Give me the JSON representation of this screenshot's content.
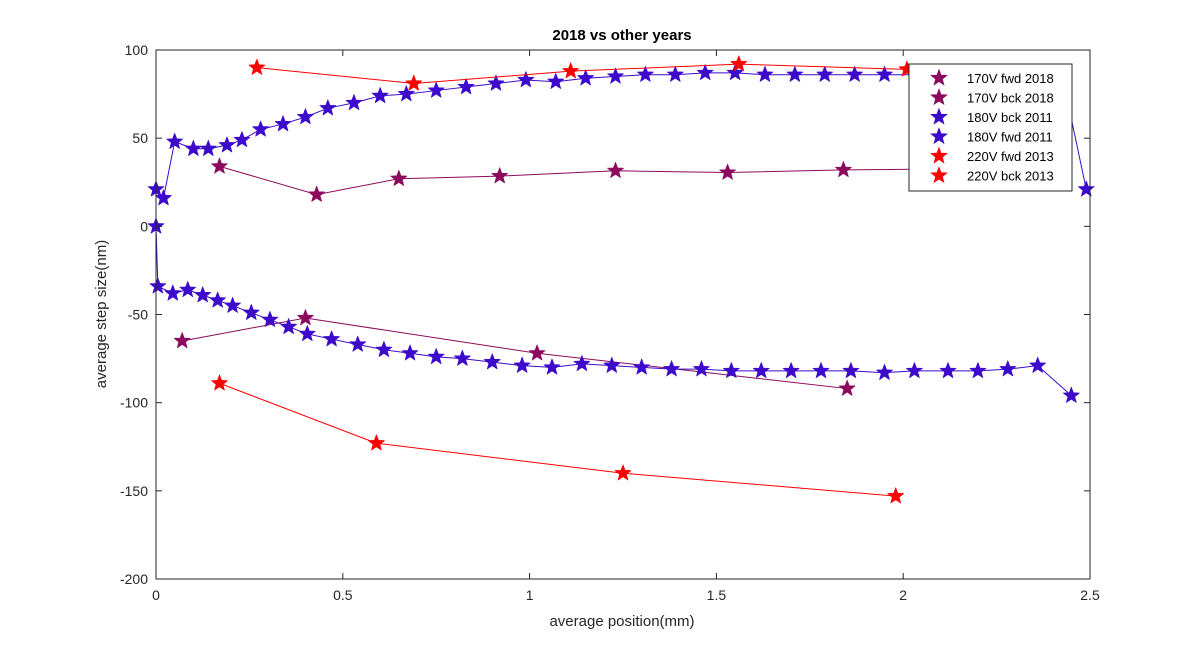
{
  "chart_data": {
    "type": "line",
    "title": "2018 vs other years",
    "xlabel": "average position(mm)",
    "ylabel": "average step size(nm)",
    "xlim": [
      0,
      2.5
    ],
    "ylim": [
      -200,
      100
    ],
    "xticks": [
      0,
      0.5,
      1,
      1.5,
      2,
      2.5
    ],
    "yticks": [
      -200,
      -150,
      -100,
      -50,
      0,
      50,
      100
    ],
    "xtick_labels": [
      "0",
      "0.5",
      "1",
      "1.5",
      "2",
      "2.5"
    ],
    "ytick_labels": [
      "-200",
      "-150",
      "-100",
      "-50",
      "0",
      "50",
      "100"
    ],
    "grid": false,
    "marker": "star",
    "legend_position": "top-right",
    "series": [
      {
        "name": "170V fwd 2018",
        "color": "#8b0a5e",
        "x": [
          0.17,
          0.43,
          0.65,
          0.92,
          1.23,
          1.53,
          1.84,
          2.1
        ],
        "y": [
          34,
          18,
          27,
          28.5,
          31.5,
          30.5,
          32,
          32.5
        ]
      },
      {
        "name": "170V bck 2018",
        "color": "#8b0a5e",
        "x": [
          0.07,
          0.4,
          1.02,
          1.85
        ],
        "y": [
          -65,
          -52,
          -72,
          -92
        ]
      },
      {
        "name": "180V bck 2011",
        "color": "#3d0acc",
        "x": [
          0.0,
          0.005,
          0.045,
          0.085,
          0.125,
          0.165,
          0.205,
          0.255,
          0.305,
          0.355,
          0.405,
          0.47,
          0.54,
          0.61,
          0.68,
          0.75,
          0.82,
          0.9,
          0.98,
          1.06,
          1.14,
          1.22,
          1.3,
          1.38,
          1.46,
          1.54,
          1.62,
          1.7,
          1.78,
          1.86,
          1.95,
          2.03,
          2.12,
          2.2,
          2.28,
          2.36,
          2.45
        ],
        "y": [
          0,
          -34,
          -38,
          -36,
          -39,
          -42,
          -45,
          -49,
          -53,
          -57,
          -61,
          -64,
          -67,
          -70,
          -72,
          -74,
          -75,
          -77,
          -79,
          -80,
          -78,
          -79,
          -80,
          -81,
          -81,
          -82,
          -82,
          -82,
          -82,
          -82,
          -83,
          -82,
          -82,
          -82,
          -81,
          -79,
          -96
        ]
      },
      {
        "name": "180V fwd 2011",
        "color": "#3d0acc",
        "x": [
          0.0,
          0.02,
          0.05,
          0.1,
          0.14,
          0.19,
          0.23,
          0.28,
          0.34,
          0.4,
          0.46,
          0.53,
          0.6,
          0.67,
          0.75,
          0.83,
          0.91,
          0.99,
          1.07,
          1.15,
          1.23,
          1.31,
          1.39,
          1.47,
          1.55,
          1.63,
          1.71,
          1.79,
          1.87,
          1.95,
          2.03,
          2.11,
          2.19,
          2.27,
          2.35,
          2.43,
          2.49
        ],
        "y": [
          21,
          16,
          48,
          44,
          44,
          46,
          49,
          55,
          58,
          62,
          67,
          70,
          74,
          75,
          77,
          79,
          81,
          83,
          82,
          84,
          85,
          86,
          86,
          87,
          87,
          86,
          86,
          86,
          86,
          86,
          86,
          86,
          86,
          86,
          85,
          81,
          21
        ]
      },
      {
        "name": "220V fwd 2013",
        "color": "#ff0000",
        "x": [
          0.27,
          0.69,
          1.11,
          1.56,
          2.01
        ],
        "y": [
          90,
          81,
          88,
          92,
          89
        ]
      },
      {
        "name": "220V bck 2013",
        "color": "#ff0000",
        "x": [
          0.17,
          0.59,
          1.25,
          1.98
        ],
        "y": [
          -89,
          -123,
          -140,
          -153
        ]
      }
    ]
  }
}
